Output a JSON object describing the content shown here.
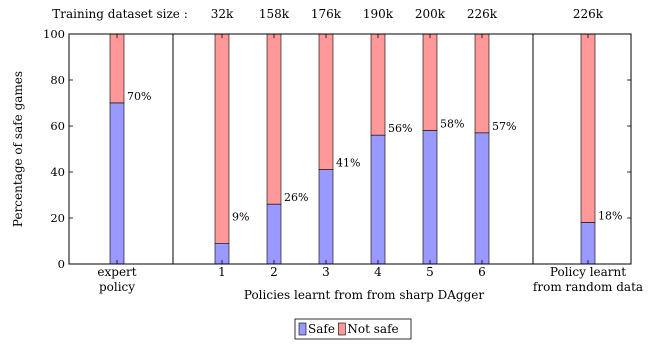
{
  "chart_data": {
    "type": "bar",
    "stacked": true,
    "ylabel": "Percentage of safe games",
    "ylim": [
      0,
      100
    ],
    "yticks": [
      0,
      20,
      40,
      60,
      80,
      100
    ],
    "top_header": "Training dataset size :",
    "categories": [
      "expert\npolicy",
      "1",
      "2",
      "3",
      "4",
      "5",
      "6",
      "Policy learnt\nfrom random data"
    ],
    "dataset_sizes": [
      "",
      "32k",
      "158k",
      "176k",
      "190k",
      "200k",
      "226k",
      "226k"
    ],
    "group_label": "Policies learnt from from sharp DAgger",
    "series": [
      {
        "name": "Safe",
        "color": "#9999ff",
        "values": [
          70,
          9,
          26,
          41,
          56,
          58,
          57,
          18
        ]
      },
      {
        "name": "Not safe",
        "color": "#ff9999",
        "values": [
          30,
          91,
          74,
          59,
          44,
          42,
          43,
          82
        ]
      }
    ],
    "data_labels": [
      "70%",
      "9%",
      "26%",
      "41%",
      "56%",
      "58%",
      "57%",
      "18%"
    ],
    "legend_position": "bottom-center"
  }
}
